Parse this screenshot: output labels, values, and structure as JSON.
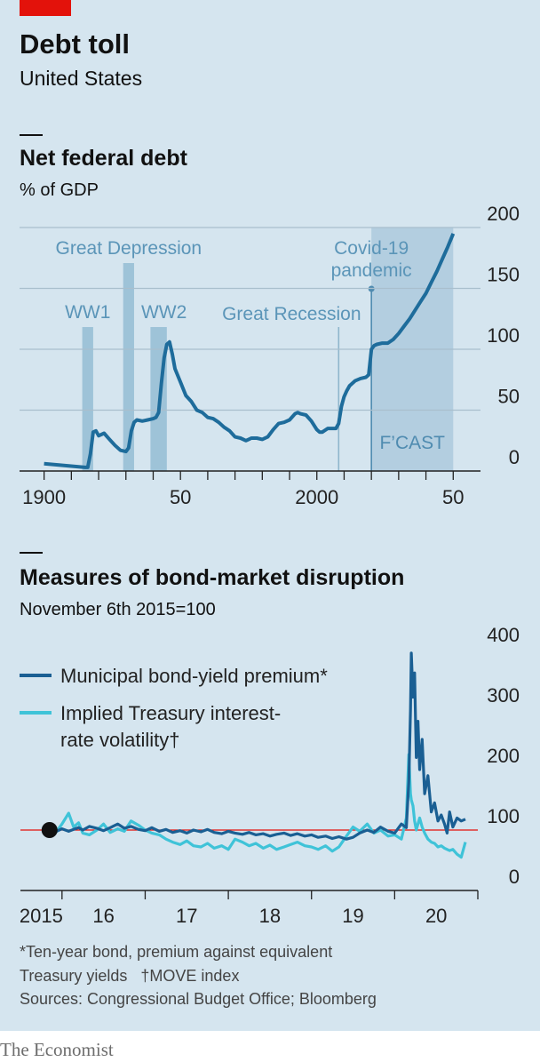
{
  "title": "Debt toll",
  "subtitle": "United States",
  "chart_data": [
    {
      "type": "line",
      "title": "Net federal debt",
      "subtitle": "% of GDP",
      "color": "#1e6c9b",
      "x": [
        1900,
        1905,
        1910,
        1915,
        1916,
        1917,
        1918,
        1919,
        1920,
        1922,
        1924,
        1926,
        1928,
        1930,
        1931,
        1932,
        1933,
        1934,
        1936,
        1938,
        1940,
        1941,
        1942,
        1943,
        1944,
        1945,
        1946,
        1947,
        1948,
        1950,
        1952,
        1954,
        1956,
        1958,
        1960,
        1962,
        1964,
        1966,
        1968,
        1970,
        1972,
        1974,
        1975,
        1976,
        1978,
        1980,
        1982,
        1984,
        1986,
        1988,
        1990,
        1992,
        1993,
        1994,
        1996,
        1998,
        2000,
        2001,
        2002,
        2004,
        2006,
        2007,
        2008,
        2009,
        2010,
        2011,
        2012,
        2014,
        2016,
        2018,
        2019,
        2020,
        2021,
        2022,
        2024,
        2026,
        2028,
        2030,
        2032,
        2034,
        2036,
        2038,
        2040,
        2042,
        2044,
        2046,
        2048,
        2050
      ],
      "values": [
        6,
        5,
        4,
        3,
        3,
        14,
        32,
        33,
        29,
        31,
        26,
        21,
        17,
        16,
        19,
        33,
        40,
        42,
        41,
        42,
        43,
        44,
        48,
        72,
        93,
        104,
        106,
        96,
        84,
        73,
        62,
        57,
        50,
        48,
        44,
        43,
        40,
        36,
        33,
        28,
        27,
        25,
        26,
        27,
        27,
        26,
        28,
        34,
        39,
        40,
        42,
        47,
        48,
        47,
        46,
        41,
        34,
        32,
        32,
        35,
        35,
        35,
        39,
        53,
        61,
        66,
        70,
        74,
        76,
        77,
        79,
        100,
        103,
        104,
        105,
        105,
        108,
        113,
        119,
        125,
        132,
        139,
        146,
        155,
        164,
        174,
        184,
        195
      ],
      "xlim": [
        1891,
        2060
      ],
      "ylim": [
        0,
        200
      ],
      "yticks": [
        0,
        50,
        100,
        150,
        200
      ],
      "xticks": [
        1900,
        {
          "value": 1950,
          "label": "50"
        },
        2000,
        {
          "value": 2050,
          "label": "50"
        }
      ],
      "xtick_marks": [
        1900,
        1910,
        1920,
        1930,
        1940,
        1950,
        1960,
        1970,
        1980,
        1990,
        2000,
        2010,
        2020,
        2030,
        2040,
        2050
      ],
      "grid": true,
      "periods": [
        {
          "label": "WW1",
          "start": 1914,
          "end": 1918
        },
        {
          "label": "Great Depression",
          "start": 1929,
          "end": 1933
        },
        {
          "label": "WW2",
          "start": 1939,
          "end": 1945
        }
      ],
      "events": [
        {
          "label": "Great Recession",
          "x": 2008
        },
        {
          "label": "Covid-19 pandemic",
          "x": 2020
        }
      ],
      "forecast": {
        "label": "F’CAST",
        "start": 2020,
        "end": 2050
      }
    },
    {
      "type": "line",
      "title": "Measures of bond-market disruption",
      "subtitle": "November 6th 2015=100",
      "x": [
        2015.85,
        2015.92,
        2016.0,
        2016.08,
        2016.14,
        2016.2,
        2016.25,
        2016.33,
        2016.42,
        2016.5,
        2016.58,
        2016.67,
        2016.75,
        2016.83,
        2016.92,
        2017.0,
        2017.08,
        2017.17,
        2017.25,
        2017.33,
        2017.42,
        2017.5,
        2017.58,
        2017.67,
        2017.75,
        2017.83,
        2017.92,
        2018.0,
        2018.08,
        2018.17,
        2018.25,
        2018.33,
        2018.42,
        2018.5,
        2018.58,
        2018.67,
        2018.75,
        2018.83,
        2018.92,
        2019.0,
        2019.08,
        2019.17,
        2019.25,
        2019.33,
        2019.42,
        2019.5,
        2019.58,
        2019.67,
        2019.75,
        2019.83,
        2019.92,
        2020.0,
        2020.08,
        2020.14,
        2020.17,
        2020.19,
        2020.2,
        2020.22,
        2020.24,
        2020.26,
        2020.28,
        2020.3,
        2020.33,
        2020.36,
        2020.4,
        2020.44,
        2020.48,
        2020.52,
        2020.56,
        2020.6,
        2020.63,
        2020.66,
        2020.7,
        2020.75,
        2020.8,
        2020.85
      ],
      "series": [
        {
          "name": "Municipal bond-yield premium*",
          "color": "#1a5f93",
          "values": [
            100,
            97,
            102,
            98,
            101,
            104,
            100,
            106,
            103,
            99,
            104,
            110,
            103,
            106,
            101,
            99,
            104,
            98,
            101,
            96,
            99,
            95,
            100,
            97,
            101,
            96,
            94,
            98,
            95,
            93,
            96,
            92,
            94,
            90,
            93,
            95,
            91,
            94,
            90,
            92,
            88,
            90,
            86,
            89,
            85,
            88,
            95,
            100,
            96,
            105,
            98,
            95,
            110,
            104,
            180,
            300,
            393,
            320,
            360,
            220,
            280,
            200,
            250,
            160,
            190,
            130,
            145,
            115,
            125,
            110,
            95,
            130,
            105,
            120,
            115,
            118
          ]
        },
        {
          "name": "Implied Treasury interest-rate volatility†",
          "color": "#3fc3d8",
          "values": [
            100,
            95,
            110,
            128,
            105,
            112,
            95,
            92,
            100,
            110,
            96,
            102,
            98,
            115,
            108,
            100,
            95,
            92,
            85,
            80,
            76,
            82,
            74,
            72,
            78,
            70,
            74,
            68,
            85,
            80,
            74,
            78,
            70,
            75,
            68,
            72,
            76,
            80,
            74,
            72,
            68,
            74,
            65,
            72,
            90,
            105,
            98,
            110,
            95,
            100,
            90,
            92,
            85,
            120,
            225,
            160,
            150,
            140,
            115,
            100,
            110,
            120,
            105,
            95,
            85,
            80,
            78,
            72,
            74,
            70,
            68,
            66,
            68,
            60,
            55,
            80
          ]
        }
      ],
      "xlim": [
        2015.5,
        2021
      ],
      "ylim": [
        0,
        400
      ],
      "yticks": [
        0,
        100,
        200,
        300,
        400
      ],
      "xticks": [
        {
          "value": 2015.75,
          "label": "2015"
        },
        {
          "value": 2016.5,
          "label": "16"
        },
        {
          "value": 2017.5,
          "label": "17"
        },
        {
          "value": 2018.5,
          "label": "18"
        },
        {
          "value": 2019.5,
          "label": "19"
        },
        {
          "value": 2020.5,
          "label": "20"
        }
      ],
      "xtick_marks": [
        2016,
        2017,
        2018,
        2019,
        2020,
        2021
      ],
      "grid": false,
      "legend": "top-left",
      "reference_line": {
        "value": 100,
        "color": "#e3120b"
      }
    }
  ],
  "footnotes": [
    "*Ten-year bond, premium against equivalent Treasury yields",
    "†MOVE index"
  ],
  "source": "Sources: Congressional Budget Office; Bloomberg",
  "brand": "The Economist"
}
